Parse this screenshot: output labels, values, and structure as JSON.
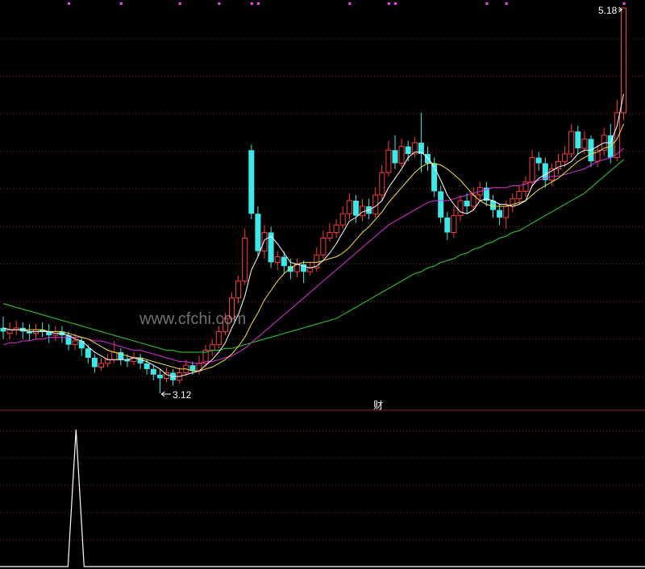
{
  "chart_data": {
    "type": "candlestick",
    "annotations": {
      "high_label": "5.18",
      "low_label": "3.12"
    },
    "watermark": "www.cfchi.com",
    "indicator_label": "财",
    "colors": {
      "up": "#ff3b3b",
      "down": "#3ee8e8",
      "ma_white": "#ffffff",
      "ma_yellow": "#f5e13c",
      "ma_magenta": "#e22ee2",
      "ma_green": "#2ed62e",
      "grid": "#7a2a2a",
      "indicator": "#ffffff",
      "signal_dots": "#ff44ff"
    },
    "candles": [
      [
        3.47,
        3.45,
        3.53,
        3.41
      ],
      [
        3.44,
        3.46,
        3.5,
        3.41
      ],
      [
        3.46,
        3.47,
        3.51,
        3.43
      ],
      [
        3.47,
        3.45,
        3.5,
        3.41
      ],
      [
        3.45,
        3.44,
        3.49,
        3.4
      ],
      [
        3.44,
        3.46,
        3.49,
        3.41
      ],
      [
        3.46,
        3.45,
        3.5,
        3.42
      ],
      [
        3.45,
        3.43,
        3.49,
        3.39
      ],
      [
        3.43,
        3.45,
        3.48,
        3.4
      ],
      [
        3.45,
        3.43,
        3.48,
        3.39
      ],
      [
        3.43,
        3.38,
        3.45,
        3.35
      ],
      [
        3.38,
        3.4,
        3.44,
        3.35
      ],
      [
        3.4,
        3.36,
        3.42,
        3.32
      ],
      [
        3.36,
        3.31,
        3.38,
        3.28
      ],
      [
        3.31,
        3.26,
        3.33,
        3.23
      ],
      [
        3.26,
        3.28,
        3.31,
        3.24
      ],
      [
        3.28,
        3.3,
        3.33,
        3.26
      ],
      [
        3.3,
        3.34,
        3.4,
        3.28
      ],
      [
        3.34,
        3.3,
        3.36,
        3.27
      ],
      [
        3.3,
        3.29,
        3.33,
        3.26
      ],
      [
        3.29,
        3.31,
        3.34,
        3.27
      ],
      [
        3.31,
        3.28,
        3.33,
        3.25
      ],
      [
        3.28,
        3.25,
        3.3,
        3.22
      ],
      [
        3.25,
        3.22,
        3.27,
        3.19
      ],
      [
        3.22,
        3.2,
        3.25,
        3.12
      ],
      [
        3.2,
        3.23,
        3.26,
        3.18
      ],
      [
        3.23,
        3.19,
        3.25,
        3.16
      ],
      [
        3.19,
        3.23,
        3.26,
        3.17
      ],
      [
        3.23,
        3.27,
        3.3,
        3.21
      ],
      [
        3.27,
        3.24,
        3.29,
        3.22
      ],
      [
        3.24,
        3.28,
        3.32,
        3.22
      ],
      [
        3.28,
        3.35,
        3.38,
        3.26
      ],
      [
        3.35,
        3.38,
        3.41,
        3.32
      ],
      [
        3.38,
        3.45,
        3.48,
        3.36
      ],
      [
        3.45,
        3.52,
        3.55,
        3.43
      ],
      [
        3.52,
        3.63,
        3.66,
        3.5
      ],
      [
        3.63,
        3.72,
        3.75,
        3.6
      ],
      [
        3.72,
        3.95,
        4.0,
        3.7
      ],
      [
        4.42,
        4.08,
        4.45,
        4.05
      ],
      [
        4.08,
        3.88,
        4.12,
        3.85
      ],
      [
        3.88,
        3.98,
        4.02,
        3.84
      ],
      [
        3.98,
        3.82,
        4.01,
        3.79
      ],
      [
        3.82,
        3.85,
        3.88,
        3.78
      ],
      [
        3.85,
        3.8,
        3.88,
        3.76
      ],
      [
        3.8,
        3.77,
        3.84,
        3.73
      ],
      [
        3.77,
        3.81,
        3.84,
        3.74
      ],
      [
        3.81,
        3.77,
        3.83,
        3.71
      ],
      [
        3.77,
        3.79,
        3.82,
        3.75
      ],
      [
        3.79,
        3.86,
        3.9,
        3.77
      ],
      [
        3.86,
        3.95,
        3.99,
        3.84
      ],
      [
        3.95,
        3.98,
        4.03,
        3.93
      ],
      [
        3.98,
        4.02,
        4.05,
        3.95
      ],
      [
        4.02,
        4.08,
        4.12,
        4.0
      ],
      [
        4.08,
        4.15,
        4.19,
        4.05
      ],
      [
        4.15,
        4.07,
        4.18,
        4.03
      ],
      [
        4.07,
        4.12,
        4.16,
        4.04
      ],
      [
        4.12,
        4.08,
        4.16,
        4.05
      ],
      [
        4.08,
        4.18,
        4.22,
        4.06
      ],
      [
        4.18,
        4.3,
        4.34,
        4.15
      ],
      [
        4.3,
        4.42,
        4.47,
        4.28
      ],
      [
        4.42,
        4.35,
        4.5,
        4.32
      ],
      [
        4.35,
        4.44,
        4.48,
        4.33
      ],
      [
        4.44,
        4.4,
        4.47,
        4.36
      ],
      [
        4.4,
        4.46,
        4.49,
        4.38
      ],
      [
        4.46,
        4.4,
        4.62,
        4.3
      ],
      [
        4.4,
        4.35,
        4.44,
        4.31
      ],
      [
        4.35,
        4.2,
        4.38,
        4.17
      ],
      [
        4.2,
        4.06,
        4.23,
        4.03
      ],
      [
        4.06,
        3.98,
        4.09,
        3.94
      ],
      [
        3.98,
        4.07,
        4.12,
        3.95
      ],
      [
        4.07,
        4.15,
        4.18,
        4.04
      ],
      [
        4.15,
        4.12,
        4.19,
        4.08
      ],
      [
        4.12,
        4.18,
        4.22,
        4.1
      ],
      [
        4.18,
        4.22,
        4.25,
        4.15
      ],
      [
        4.22,
        4.15,
        4.25,
        4.12
      ],
      [
        4.15,
        4.1,
        4.18,
        4.06
      ],
      [
        4.1,
        4.06,
        4.13,
        4.02
      ],
      [
        4.06,
        4.12,
        4.15,
        4.0
      ],
      [
        4.12,
        4.16,
        4.19,
        4.09
      ],
      [
        4.16,
        4.2,
        4.23,
        4.13
      ],
      [
        4.2,
        4.25,
        4.28,
        4.17
      ],
      [
        4.25,
        4.38,
        4.42,
        4.22
      ],
      [
        4.38,
        4.35,
        4.41,
        4.31
      ],
      [
        4.35,
        4.26,
        4.38,
        4.22
      ],
      [
        4.26,
        4.32,
        4.35,
        4.23
      ],
      [
        4.32,
        4.36,
        4.4,
        4.29
      ],
      [
        4.36,
        4.4,
        4.44,
        4.33
      ],
      [
        4.4,
        4.52,
        4.56,
        4.38
      ],
      [
        4.52,
        4.43,
        4.55,
        4.4
      ],
      [
        4.43,
        4.48,
        4.52,
        4.4
      ],
      [
        4.48,
        4.36,
        4.5,
        4.33
      ],
      [
        4.36,
        4.42,
        4.45,
        4.33
      ],
      [
        4.42,
        4.5,
        4.54,
        4.39
      ],
      [
        4.5,
        4.38,
        4.56,
        4.35
      ],
      [
        4.38,
        4.62,
        4.69,
        4.36
      ],
      [
        4.62,
        5.18,
        5.18,
        4.58
      ]
    ],
    "ma_white": [
      3.47,
      3.46,
      3.46,
      3.46,
      3.45,
      3.45,
      3.45,
      3.45,
      3.44,
      3.44,
      3.43,
      3.41,
      3.4,
      3.37,
      3.34,
      3.32,
      3.3,
      3.3,
      3.3,
      3.3,
      3.31,
      3.3,
      3.29,
      3.27,
      3.25,
      3.22,
      3.21,
      3.21,
      3.22,
      3.23,
      3.24,
      3.27,
      3.3,
      3.34,
      3.39,
      3.47,
      3.54,
      3.64,
      3.78,
      3.85,
      3.94,
      3.96,
      3.92,
      3.87,
      3.82,
      3.81,
      3.8,
      3.79,
      3.8,
      3.83,
      3.87,
      3.92,
      3.98,
      4.04,
      4.06,
      4.09,
      4.1,
      4.12,
      4.15,
      4.22,
      4.27,
      4.32,
      4.38,
      4.41,
      4.41,
      4.38,
      4.33,
      4.26,
      4.18,
      4.13,
      4.09,
      4.08,
      4.1,
      4.15,
      4.16,
      4.15,
      4.13,
      4.13,
      4.12,
      4.13,
      4.15,
      4.23,
      4.27,
      4.29,
      4.31,
      4.33,
      4.34,
      4.36,
      4.4,
      4.42,
      4.42,
      4.44,
      4.46,
      4.46,
      4.55,
      4.72
    ],
    "ma_yellow": [
      3.47,
      3.46,
      3.46,
      3.46,
      3.46,
      3.46,
      3.46,
      3.45,
      3.45,
      3.45,
      3.44,
      3.43,
      3.42,
      3.41,
      3.39,
      3.37,
      3.35,
      3.34,
      3.33,
      3.32,
      3.31,
      3.31,
      3.3,
      3.29,
      3.28,
      3.27,
      3.26,
      3.25,
      3.25,
      3.24,
      3.24,
      3.25,
      3.26,
      3.28,
      3.3,
      3.33,
      3.37,
      3.42,
      3.49,
      3.55,
      3.62,
      3.67,
      3.72,
      3.76,
      3.79,
      3.81,
      3.82,
      3.82,
      3.82,
      3.83,
      3.84,
      3.85,
      3.87,
      3.9,
      3.94,
      3.98,
      4.01,
      4.05,
      4.09,
      4.14,
      4.18,
      4.22,
      4.26,
      4.3,
      4.33,
      4.35,
      4.35,
      4.34,
      4.32,
      4.29,
      4.26,
      4.22,
      4.18,
      4.15,
      4.13,
      4.12,
      4.12,
      4.12,
      4.13,
      4.14,
      4.15,
      4.18,
      4.21,
      4.23,
      4.25,
      4.27,
      4.3,
      4.33,
      4.36,
      4.38,
      4.4,
      4.41,
      4.43,
      4.44,
      4.48,
      4.56
    ],
    "ma_magenta": [
      3.38,
      3.39,
      3.39,
      3.4,
      3.4,
      3.41,
      3.41,
      3.42,
      3.42,
      3.42,
      3.42,
      3.42,
      3.42,
      3.41,
      3.4,
      3.4,
      3.39,
      3.38,
      3.37,
      3.36,
      3.35,
      3.35,
      3.34,
      3.33,
      3.32,
      3.31,
      3.3,
      3.29,
      3.29,
      3.28,
      3.28,
      3.29,
      3.29,
      3.3,
      3.31,
      3.32,
      3.34,
      3.36,
      3.39,
      3.42,
      3.45,
      3.48,
      3.51,
      3.54,
      3.57,
      3.6,
      3.63,
      3.66,
      3.69,
      3.72,
      3.75,
      3.78,
      3.81,
      3.84,
      3.87,
      3.9,
      3.93,
      3.96,
      3.99,
      4.02,
      4.04,
      4.06,
      4.08,
      4.1,
      4.12,
      4.14,
      4.15,
      4.15,
      4.15,
      4.16,
      4.17,
      4.18,
      4.19,
      4.2,
      4.21,
      4.22,
      4.22,
      4.22,
      4.23,
      4.23,
      4.24,
      4.25,
      4.26,
      4.27,
      4.28,
      4.28,
      4.29,
      4.3,
      4.31,
      4.32,
      4.34,
      4.36,
      4.37,
      4.38,
      4.4,
      4.43
    ],
    "ma_green": [
      3.6,
      3.59,
      3.58,
      3.57,
      3.56,
      3.55,
      3.54,
      3.53,
      3.52,
      3.51,
      3.5,
      3.49,
      3.48,
      3.47,
      3.46,
      3.45,
      3.44,
      3.43,
      3.42,
      3.41,
      3.4,
      3.39,
      3.38,
      3.37,
      3.36,
      3.35,
      3.35,
      3.34,
      3.34,
      3.34,
      3.34,
      3.34,
      3.35,
      3.35,
      3.36,
      3.36,
      3.37,
      3.38,
      3.39,
      3.4,
      3.41,
      3.42,
      3.43,
      3.44,
      3.45,
      3.46,
      3.47,
      3.48,
      3.49,
      3.5,
      3.51,
      3.52,
      3.54,
      3.56,
      3.58,
      3.6,
      3.62,
      3.64,
      3.66,
      3.68,
      3.7,
      3.72,
      3.74,
      3.76,
      3.77,
      3.79,
      3.8,
      3.82,
      3.83,
      3.84,
      3.86,
      3.87,
      3.89,
      3.9,
      3.92,
      3.93,
      3.95,
      3.96,
      3.98,
      3.99,
      4.01,
      4.03,
      4.05,
      4.07,
      4.09,
      4.11,
      4.13,
      4.15,
      4.17,
      4.19,
      4.22,
      4.25,
      4.28,
      4.31,
      4.34,
      4.37
    ],
    "indicator": {
      "spike_index": 13,
      "spike_value": 1.0
    },
    "signal_dot_indices": [
      10,
      18,
      27,
      33,
      38,
      39,
      53,
      59,
      60,
      74,
      77,
      95
    ]
  }
}
